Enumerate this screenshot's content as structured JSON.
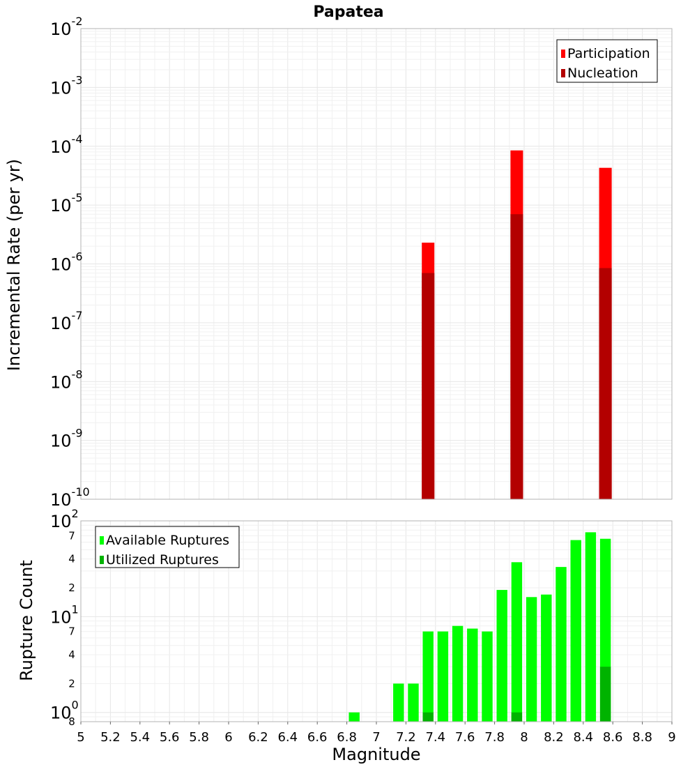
{
  "chart_data": [
    {
      "type": "bar",
      "title": "Papatea",
      "ylabel": "Incremental Rate (per yr)",
      "xlabel": "",
      "yscale": "log",
      "ylim": [
        1e-10,
        0.01
      ],
      "xlim": [
        5,
        9
      ],
      "grid": true,
      "legend_position": "top-right",
      "yticks": [
        {
          "base": "10",
          "exp": "-2"
        },
        {
          "base": "10",
          "exp": "-3"
        },
        {
          "base": "10",
          "exp": "-4"
        },
        {
          "base": "10",
          "exp": "-5"
        },
        {
          "base": "10",
          "exp": "-6"
        },
        {
          "base": "10",
          "exp": "-7"
        },
        {
          "base": "10",
          "exp": "-8"
        },
        {
          "base": "10",
          "exp": "-9"
        },
        {
          "base": "10",
          "exp": "-10"
        }
      ],
      "series": [
        {
          "name": "Participation",
          "color": "#ff0000",
          "points": [
            {
              "x": 7.35,
              "y": 2.3e-06
            },
            {
              "x": 7.95,
              "y": 8.5e-05
            },
            {
              "x": 8.55,
              "y": 4.3e-05
            }
          ]
        },
        {
          "name": "Nucleation",
          "color": "#b30000",
          "points": [
            {
              "x": 7.35,
              "y": 7e-07
            },
            {
              "x": 7.95,
              "y": 7e-06
            },
            {
              "x": 8.55,
              "y": 8.5e-07
            }
          ]
        }
      ]
    },
    {
      "type": "bar",
      "title": "",
      "ylabel": "Rupture Count",
      "xlabel": "Magnitude",
      "yscale": "log",
      "ylim": [
        0.8,
        100
      ],
      "xlim": [
        5,
        9
      ],
      "grid": true,
      "legend_position": "top-left",
      "xticks": [
        "5",
        "5.2",
        "5.4",
        "5.6",
        "5.8",
        "6",
        "6.2",
        "6.4",
        "6.6",
        "6.8",
        "7",
        "7.2",
        "7.4",
        "7.6",
        "7.8",
        "8",
        "8.2",
        "8.4",
        "8.6",
        "8.8",
        "9"
      ],
      "yticks": [
        {
          "value": 100,
          "base": "10",
          "exp": "2",
          "minor": ""
        },
        {
          "value": 70,
          "base": "",
          "exp": "",
          "minor": "7"
        },
        {
          "value": 40,
          "base": "",
          "exp": "",
          "minor": "4"
        },
        {
          "value": 20,
          "base": "",
          "exp": "",
          "minor": "2"
        },
        {
          "value": 10,
          "base": "10",
          "exp": "1",
          "minor": ""
        },
        {
          "value": 7,
          "base": "",
          "exp": "",
          "minor": "7"
        },
        {
          "value": 4,
          "base": "",
          "exp": "",
          "minor": "4"
        },
        {
          "value": 2,
          "base": "",
          "exp": "",
          "minor": "2"
        },
        {
          "value": 1,
          "base": "10",
          "exp": "0",
          "minor": ""
        },
        {
          "value": 0.8,
          "base": "",
          "exp": "",
          "minor": "8"
        }
      ],
      "series": [
        {
          "name": "Available Ruptures",
          "color": "#00ff00",
          "points": [
            {
              "x": 6.85,
              "y": 1
            },
            {
              "x": 7.15,
              "y": 2
            },
            {
              "x": 7.25,
              "y": 2
            },
            {
              "x": 7.35,
              "y": 7
            },
            {
              "x": 7.45,
              "y": 7
            },
            {
              "x": 7.55,
              "y": 8
            },
            {
              "x": 7.65,
              "y": 7.5
            },
            {
              "x": 7.75,
              "y": 7
            },
            {
              "x": 7.85,
              "y": 19
            },
            {
              "x": 7.95,
              "y": 37
            },
            {
              "x": 8.05,
              "y": 16
            },
            {
              "x": 8.15,
              "y": 17
            },
            {
              "x": 8.25,
              "y": 33
            },
            {
              "x": 8.35,
              "y": 63
            },
            {
              "x": 8.45,
              "y": 76
            },
            {
              "x": 8.55,
              "y": 65
            }
          ]
        },
        {
          "name": "Utilized Ruptures",
          "color": "#00b300",
          "points": [
            {
              "x": 7.35,
              "y": 1
            },
            {
              "x": 7.95,
              "y": 1
            },
            {
              "x": 8.55,
              "y": 3
            }
          ]
        }
      ]
    }
  ]
}
